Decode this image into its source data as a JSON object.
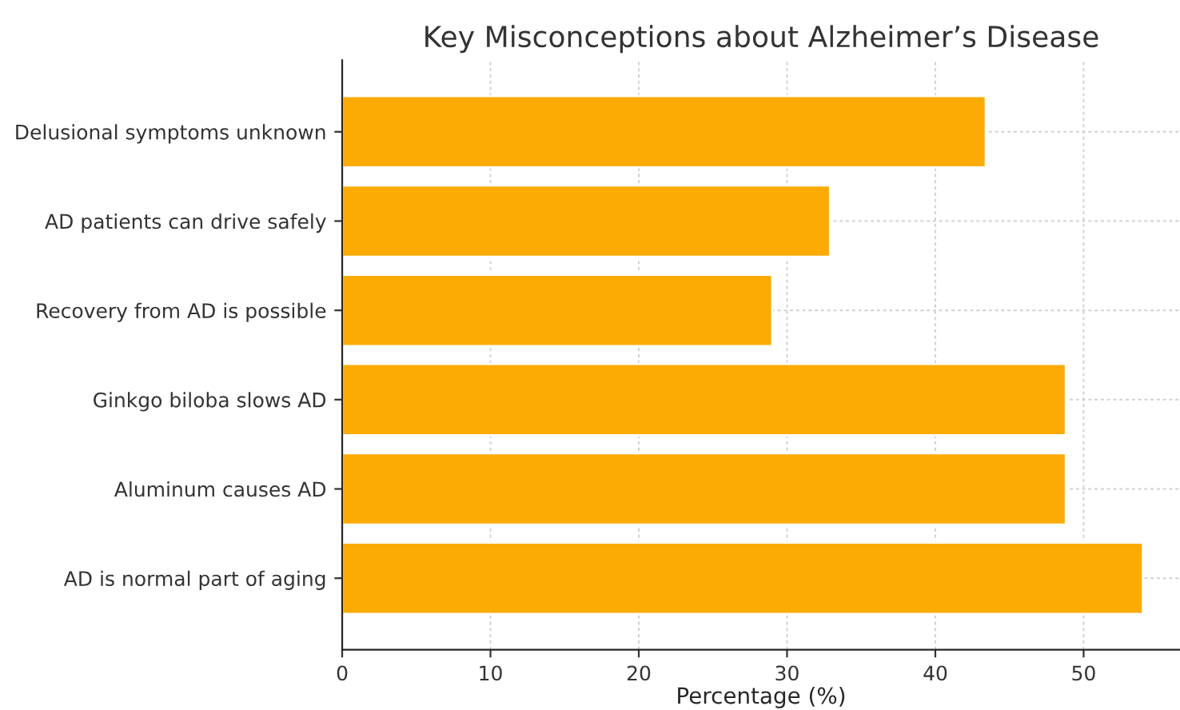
{
  "chart_data": {
    "type": "bar",
    "orientation": "horizontal",
    "title": "Key Misconceptions about Alzheimer’s Disease",
    "xlabel": "Percentage (%)",
    "categories": [
      "Delusional symptoms unknown",
      "AD patients can drive safely",
      "Recovery from AD is possible",
      "Ginkgo biloba slows AD",
      "Aluminum causes AD",
      "AD is normal part of aging"
    ],
    "values": [
      43.4,
      32.9,
      29.0,
      48.8,
      48.8,
      54.0
    ],
    "color": "#fbab04",
    "xlim": [
      0,
      56.5
    ],
    "xticks": [
      0,
      10,
      20,
      30,
      40,
      50
    ],
    "grid": true
  }
}
